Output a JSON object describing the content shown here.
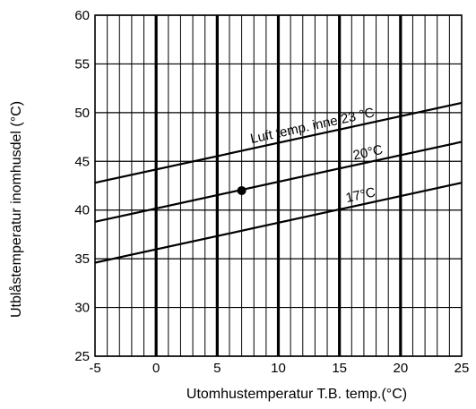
{
  "chart_data": {
    "type": "line",
    "title": "",
    "xlabel": "Utomhustemperatur T.B. temp.(°C)",
    "ylabel": "Utblåstemperatur inomhusdel (°C)",
    "xlim": [
      -5,
      25
    ],
    "ylim": [
      25,
      60
    ],
    "x_ticks": [
      -5,
      0,
      5,
      10,
      15,
      20,
      25
    ],
    "x_tick_labels": [
      "-5",
      "0",
      "5",
      "10",
      "15",
      "20",
      "25"
    ],
    "y_ticks": [
      25,
      30,
      35,
      40,
      45,
      50,
      55,
      60
    ],
    "y_tick_labels": [
      "25",
      "30",
      "35",
      "40",
      "45",
      "50",
      "55",
      "60"
    ],
    "grid": {
      "minor_x_step": 1,
      "major_x_bold": [
        0,
        5,
        10,
        15,
        20
      ],
      "y_step": 5
    },
    "colors": {
      "line": "#000000",
      "grid": "#000000",
      "background": "#ffffff"
    },
    "series": [
      {
        "name": "Luft temp.  inne.23 °C",
        "x": [
          -5,
          25
        ],
        "y": [
          42.8,
          51.0
        ]
      },
      {
        "name": "20°C",
        "x": [
          -5,
          25
        ],
        "y": [
          38.8,
          47.0
        ]
      },
      {
        "name": "17°C",
        "x": [
          -5,
          25
        ],
        "y": [
          34.6,
          42.8
        ]
      }
    ],
    "points": [
      {
        "x": 7,
        "y": 42
      }
    ]
  }
}
